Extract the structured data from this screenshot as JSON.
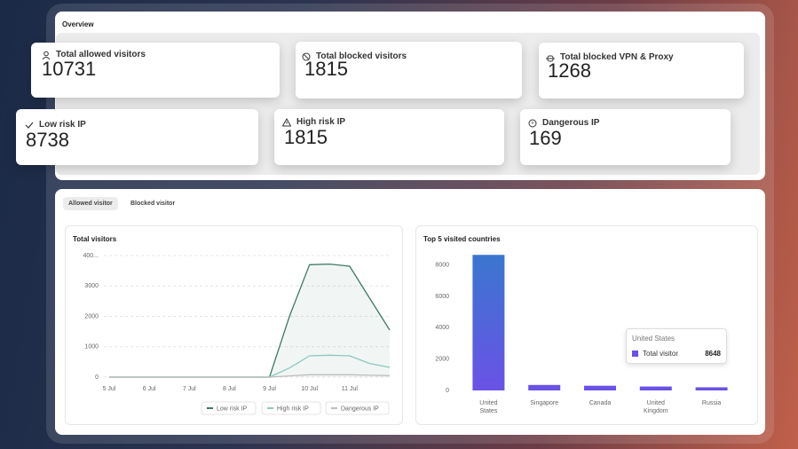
{
  "overview": {
    "title": "Overview",
    "cards": [
      {
        "label": "Total allowed visitors",
        "value": 10731
      },
      {
        "label": "Total blocked visitors",
        "value": 1815
      },
      {
        "label": "Total blocked VPN & Proxy",
        "value": 1268
      },
      {
        "label": "Low risk IP",
        "value": 8738
      },
      {
        "label": "High risk IP",
        "value": 1815
      },
      {
        "label": "Dangerous IP",
        "value": 169
      }
    ]
  },
  "tabs": [
    "Allowed visitor",
    "Blocked visitor"
  ],
  "chart_data": [
    {
      "type": "line",
      "title": "Total visitors",
      "categories": [
        "5 Jul",
        null,
        "6 Jul",
        null,
        "7 Jul",
        null,
        "8 Jul",
        null,
        "9 Jul",
        null,
        "10 Jul",
        null,
        "11 Jul",
        null,
        null
      ],
      "series": [
        {
          "name": "Low risk IP",
          "color": "#3d7a66",
          "values": [
            0,
            0,
            0,
            0,
            0,
            0,
            0,
            0,
            0,
            2000,
            3700,
            3720,
            3650,
            2600,
            1550
          ]
        },
        {
          "name": "High risk IP",
          "color": "#8cc7bf",
          "values": [
            0,
            0,
            0,
            0,
            0,
            0,
            0,
            0,
            0,
            300,
            700,
            720,
            700,
            450,
            320
          ]
        },
        {
          "name": "Dangerous IP",
          "color": "#bdbdbd",
          "values": [
            0,
            0,
            0,
            0,
            0,
            0,
            0,
            0,
            0,
            40,
            80,
            80,
            80,
            60,
            50
          ]
        }
      ],
      "ylim": [
        0,
        4000
      ],
      "yticks": [
        0,
        1000,
        2000,
        3000,
        {
          "value": 4000,
          "label": "400..."
        }
      ],
      "grid": true,
      "legend": "bottom-right"
    },
    {
      "type": "bar",
      "title": "Top 5 visited countries",
      "categories": [
        "United States",
        "Singapore",
        "Canada",
        "United Kingdom",
        "Russia"
      ],
      "series": [
        {
          "name": "Total visitor",
          "color": "#6a52e6",
          "values": [
            8648,
            350,
            300,
            250,
            200
          ]
        }
      ],
      "ylim": [
        0,
        9000
      ],
      "yticks": [
        0,
        2000,
        4000,
        6000,
        8000
      ],
      "grid": false
    }
  ]
}
